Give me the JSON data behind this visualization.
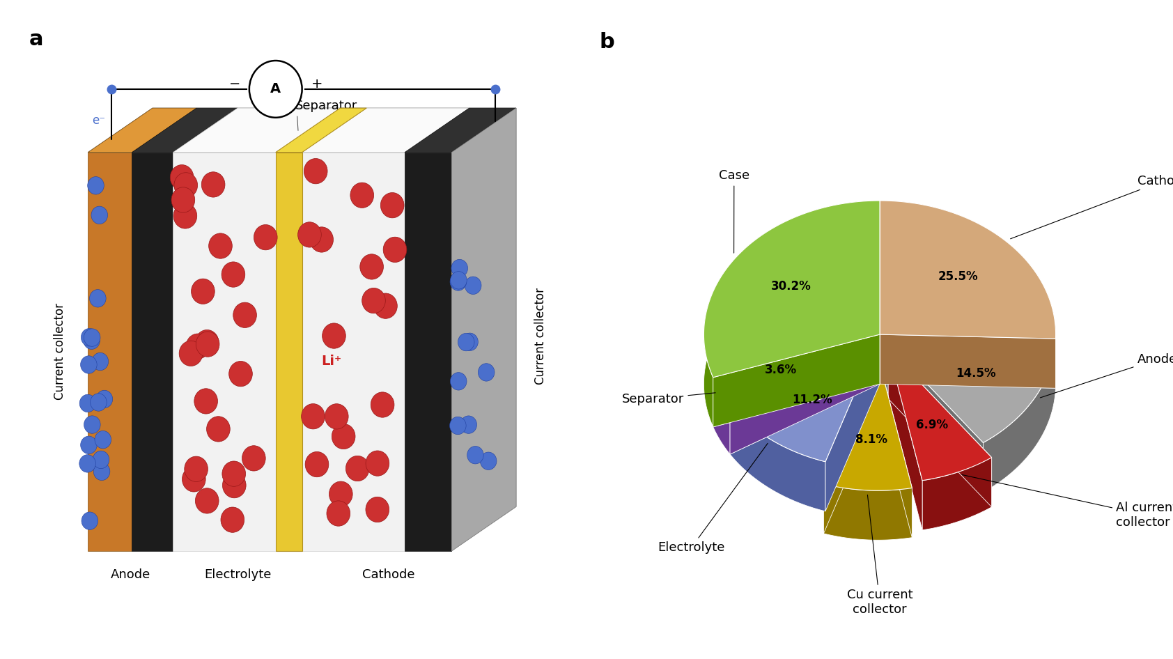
{
  "pie_labels": [
    "Cathode",
    "Anode",
    "Al current\ncollector",
    "Cu current\ncollector",
    "Electrolyte",
    "Separator",
    "Case"
  ],
  "pie_values": [
    25.5,
    14.5,
    6.9,
    8.1,
    11.2,
    3.6,
    30.2
  ],
  "pie_colors_top": [
    "#D4A87A",
    "#A8A8A8",
    "#CC2222",
    "#C8A800",
    "#8090CC",
    "#9B59B6",
    "#8DC63F"
  ],
  "pie_colors_side": [
    "#A07040",
    "#707070",
    "#881010",
    "#907800",
    "#5060A0",
    "#6B3996",
    "#5A9000"
  ],
  "pie_explode": [
    0,
    0,
    0.13,
    0.18,
    0,
    0,
    0
  ],
  "label_a": "a",
  "label_b": "b",
  "bg_color": "#FFFFFF",
  "panel_labels_fontsize": 22,
  "pie_label_fontsize": 13,
  "pie_pct_fontsize": 12,
  "separator_label": "Separator",
  "anode_label": "Anode",
  "cathode_label": "Cathode",
  "electrolyte_label": "Electrolyte",
  "current_collector_label": "Current collector",
  "wire_color": "black",
  "ion_red_color": "#CC3030",
  "ion_blue_color": "#4A6FCC"
}
